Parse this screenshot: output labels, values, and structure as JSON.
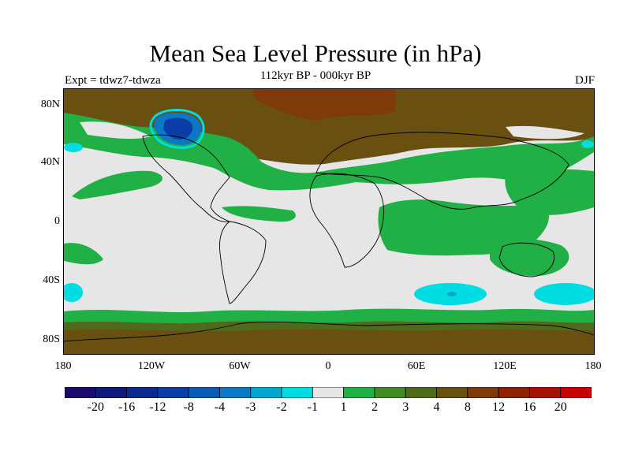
{
  "title": "Mean Sea Level Pressure (in hPa)",
  "subtitle": "112kyr BP - 000kyr BP",
  "experiment": "Expt = tdwz7-tdwza",
  "season": "DJF",
  "y_ticks": [
    "80N",
    "40N",
    "0",
    "40S",
    "80S"
  ],
  "x_ticks": [
    "180",
    "120W",
    "60W",
    "0",
    "60E",
    "120E",
    "180"
  ],
  "legend": {
    "labels": [
      "-20",
      "-16",
      "-12",
      "-8",
      "-4",
      "-3",
      "-2",
      "-1",
      "1",
      "2",
      "3",
      "4",
      "8",
      "12",
      "16",
      "20"
    ],
    "colors": [
      "#1a0a6e",
      "#0d1a7a",
      "#0b2a90",
      "#0a3ea6",
      "#0a5ab8",
      "#0a78c4",
      "#00a6d2",
      "#00dde2",
      "#e6e6e6",
      "#21b045",
      "#3f8c22",
      "#4f6a1a",
      "#6a5010",
      "#7e3a08",
      "#8e2200",
      "#a81000",
      "#c80000"
    ]
  },
  "map_colors": {
    "ocean_base": "#e6e6e6",
    "green": "#21b045",
    "olive": "#6a5010",
    "dark_olive": "#4f6a1a",
    "brown": "#7e3a08",
    "cyan": "#00dde2",
    "blue": "#0a5ab8",
    "dark_blue": "#0a3ea6"
  }
}
